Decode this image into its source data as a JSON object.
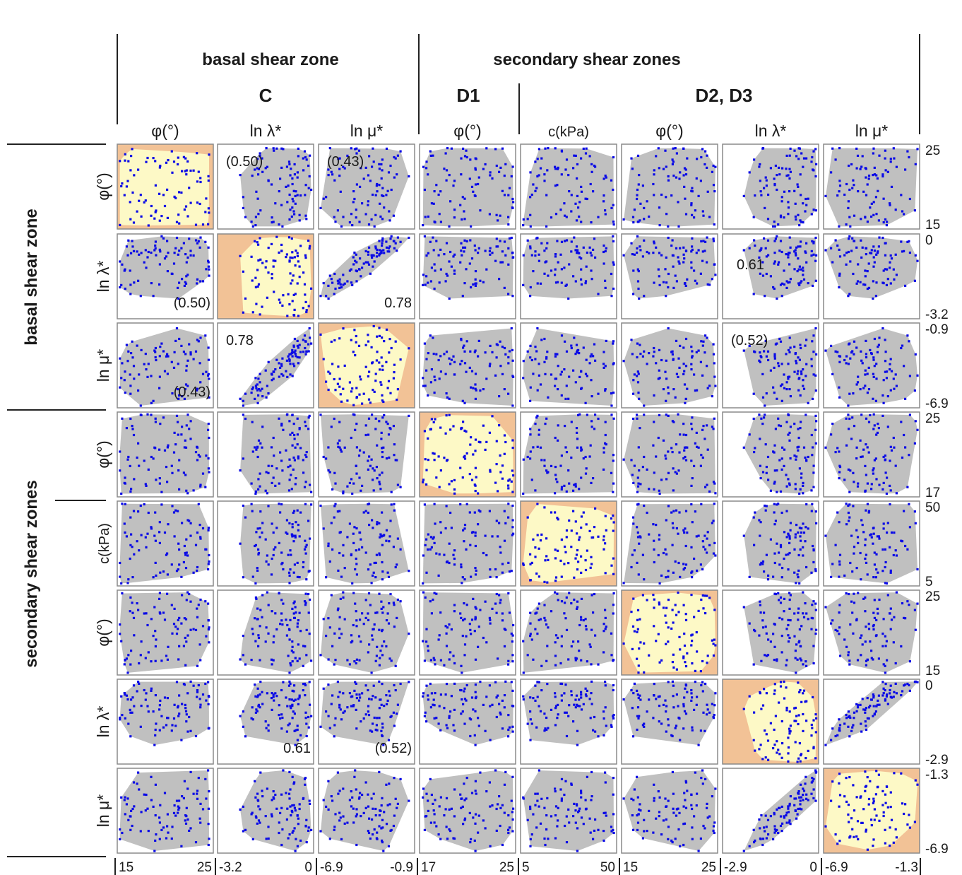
{
  "chart_data": {
    "type": "scatter",
    "title": "",
    "groups": [
      "basal shear zone",
      "secondary shear zones"
    ],
    "subgroups": [
      "C",
      "D1",
      "D2, D3"
    ],
    "variables": [
      {
        "id": "C_phi",
        "label": "φ(°)",
        "group": "basal shear zone",
        "subgroup": "C",
        "range": [
          15,
          25
        ],
        "tick_min": "15",
        "tick_max": "25"
      },
      {
        "id": "C_lam",
        "label": "ln λ*",
        "group": "basal shear zone",
        "subgroup": "C",
        "range": [
          -3.2,
          0
        ],
        "tick_min": "-3.2",
        "tick_max": "0"
      },
      {
        "id": "C_mu",
        "label": "ln μ*",
        "group": "basal shear zone",
        "subgroup": "C",
        "range": [
          -6.9,
          -0.9
        ],
        "tick_min": "-6.9",
        "tick_max": "-0.9"
      },
      {
        "id": "D1_phi",
        "label": "φ(°)",
        "group": "secondary shear zones",
        "subgroup": "D1",
        "range": [
          17,
          25
        ],
        "tick_min": "17",
        "tick_max": "25"
      },
      {
        "id": "D_c",
        "label": "c(kPa)",
        "group": "secondary shear zones",
        "subgroup": "D2, D3",
        "range": [
          5,
          50
        ],
        "tick_min": "5",
        "tick_max": "50"
      },
      {
        "id": "D_phi",
        "label": "φ(°)",
        "group": "secondary shear zones",
        "subgroup": "D2, D3",
        "range": [
          15,
          25
        ],
        "tick_min": "15",
        "tick_max": "25"
      },
      {
        "id": "D_lam",
        "label": "ln λ*",
        "group": "secondary shear zones",
        "subgroup": "D2, D3",
        "range": [
          -2.9,
          0
        ],
        "tick_min": "-2.9",
        "tick_max": "0"
      },
      {
        "id": "D_mu",
        "label": "ln μ*",
        "group": "secondary shear zones",
        "subgroup": "D2, D3",
        "range": [
          -6.9,
          -1.3
        ],
        "tick_min": "-6.9",
        "tick_max": "-1.3"
      }
    ],
    "correlations": [
      {
        "row": 0,
        "col": 1,
        "text": "(0.50)",
        "value": 0.5,
        "significant": false,
        "label_pos": "upper-left"
      },
      {
        "row": 0,
        "col": 2,
        "text": "(0.43)",
        "value": 0.43,
        "significant": false,
        "label_pos": "upper-left"
      },
      {
        "row": 1,
        "col": 0,
        "text": "(0.50)",
        "value": 0.5,
        "significant": false,
        "label_pos": "lower-right"
      },
      {
        "row": 1,
        "col": 2,
        "text": "0.78",
        "value": 0.78,
        "significant": true,
        "label_pos": "lower-right"
      },
      {
        "row": 1,
        "col": 6,
        "text": "0.61",
        "value": 0.61,
        "significant": true,
        "label_pos": "middle-left"
      },
      {
        "row": 2,
        "col": 0,
        "text": "(0.43)",
        "value": 0.43,
        "significant": false,
        "label_pos": "lower-right"
      },
      {
        "row": 2,
        "col": 1,
        "text": "0.78",
        "value": 0.78,
        "significant": true,
        "label_pos": "upper-left"
      },
      {
        "row": 2,
        "col": 6,
        "text": "(0.52)",
        "value": 0.52,
        "significant": false,
        "label_pos": "upper-left"
      },
      {
        "row": 6,
        "col": 1,
        "text": "0.61",
        "value": 0.61,
        "significant": true,
        "label_pos": "lower-right"
      },
      {
        "row": 6,
        "col": 2,
        "text": "(0.52)",
        "value": 0.52,
        "significant": false,
        "label_pos": "lower-right"
      }
    ],
    "samples_per_panel": 90,
    "colors": {
      "points": "#0b0be6",
      "hull_off_diagonal": "#c0c0c0",
      "hull_diagonal": "#fdf9c6",
      "diagonal_background": "#f2c296",
      "panel_frame": "#8a8a8a",
      "rules": "#222222"
    },
    "grid": false,
    "legend": "none"
  }
}
